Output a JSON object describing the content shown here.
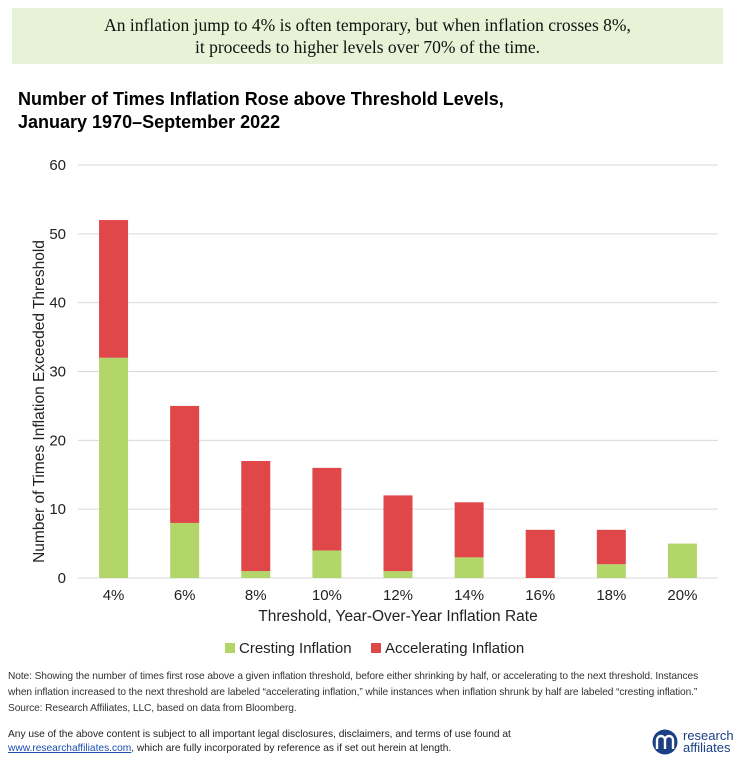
{
  "banner": {
    "line1": "An inflation jump to 4% is often temporary, but when inflation crosses 8%,",
    "line2": "it proceeds to higher levels over 70% of the time."
  },
  "chart_data": {
    "type": "bar",
    "stacked": true,
    "title": "Number of Times Inflation Rose above Threshold Levels,",
    "subtitle": "January 1970–September 2022",
    "xlabel": "Threshold,  Year-Over-Year  Inflation  Rate",
    "ylabel": "Number of Times Inflation  Exceeded Threshold",
    "categories": [
      "4%",
      "6%",
      "8%",
      "10%",
      "12%",
      "14%",
      "16%",
      "18%",
      "20%"
    ],
    "ylim": [
      0,
      60
    ],
    "yticks": [
      0,
      10,
      20,
      30,
      40,
      50,
      60
    ],
    "grid": true,
    "legend_position": "bottom",
    "series": [
      {
        "name": "Cresting Inflation",
        "color": "#b3d66b",
        "values": [
          32,
          8,
          1,
          4,
          1,
          3,
          0,
          2,
          5
        ]
      },
      {
        "name": "Accelerating Inflation",
        "color": "#df4749",
        "values": [
          20,
          17,
          16,
          12,
          11,
          8,
          7,
          5,
          0
        ]
      }
    ]
  },
  "note": {
    "line1": "Note: Showing the number of times first rose above a given inflation threshold, before either shrinking by half, or accelerating to the next threshold. Instances",
    "line2": "when inflation increased to the next threshold are labeled “accelerating inflation,” while instances when inflation shrunk by half are labeled “cresting inflation.”",
    "line3": "Source: Research Affiliates, LLC, based on data from Bloomberg."
  },
  "legal": {
    "line1": "Any use of the above content is subject to all important legal disclosures, disclaimers, and terms of use found at",
    "link": "www.researchaffiliates.com",
    "line2_rest": ", which are fully incorporated by reference as if set out herein at length."
  },
  "logo": {
    "word1": "research",
    "word2": "affiliates",
    "icon": "research-affiliates-logo-icon",
    "color": "#1b3f84"
  }
}
